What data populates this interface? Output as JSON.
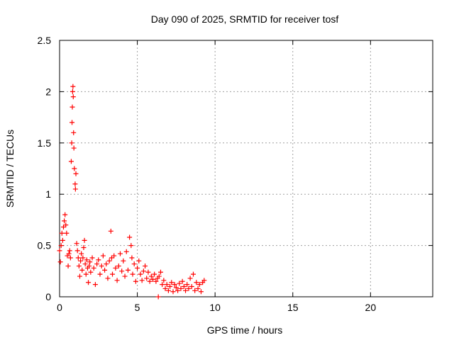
{
  "chart_data": {
    "type": "scatter",
    "title": "Day 090 of 2025, SRMTID for receiver tosf",
    "xlabel": "GPS time / hours",
    "ylabel": "SRMTID / TECUs",
    "xlim": [
      0,
      24
    ],
    "ylim": [
      0,
      2.5
    ],
    "xticks": [
      0,
      5,
      10,
      15,
      20
    ],
    "yticks": [
      0,
      0.5,
      1,
      1.5,
      2,
      2.5
    ],
    "xtick_labels": [
      "0",
      "5",
      "10",
      "15",
      "20"
    ],
    "ytick_labels": [
      "0",
      "0.5",
      "1",
      "1.5",
      "2",
      "2.5"
    ],
    "grid": true,
    "marker": "+",
    "marker_color": "#ff0000",
    "series": [
      {
        "name": "tosf",
        "points": [
          [
            0.0,
            0.45
          ],
          [
            0.05,
            0.34
          ],
          [
            0.1,
            0.5
          ],
          [
            0.15,
            0.62
          ],
          [
            0.2,
            0.55
          ],
          [
            0.25,
            0.68
          ],
          [
            0.3,
            0.74
          ],
          [
            0.35,
            0.8
          ],
          [
            0.4,
            0.7
          ],
          [
            0.45,
            0.62
          ],
          [
            0.5,
            0.4
          ],
          [
            0.55,
            0.3
          ],
          [
            0.6,
            0.42
          ],
          [
            0.65,
            0.45
          ],
          [
            0.7,
            0.38
          ],
          [
            0.75,
            1.32
          ],
          [
            0.78,
            1.5
          ],
          [
            0.8,
            1.7
          ],
          [
            0.82,
            1.85
          ],
          [
            0.84,
            2.0
          ],
          [
            0.86,
            2.05
          ],
          [
            0.88,
            1.95
          ],
          [
            0.9,
            1.6
          ],
          [
            0.92,
            1.45
          ],
          [
            0.95,
            1.25
          ],
          [
            1.0,
            1.1
          ],
          [
            1.02,
            1.05
          ],
          [
            1.05,
            1.2
          ],
          [
            1.1,
            0.52
          ],
          [
            1.15,
            0.45
          ],
          [
            1.2,
            0.38
          ],
          [
            1.25,
            0.3
          ],
          [
            1.3,
            0.2
          ],
          [
            1.35,
            0.35
          ],
          [
            1.4,
            0.42
          ],
          [
            1.45,
            0.26
          ],
          [
            1.5,
            0.38
          ],
          [
            1.55,
            0.48
          ],
          [
            1.6,
            0.55
          ],
          [
            1.65,
            0.32
          ],
          [
            1.7,
            0.22
          ],
          [
            1.75,
            0.36
          ],
          [
            1.8,
            0.28
          ],
          [
            1.85,
            0.14
          ],
          [
            1.9,
            0.3
          ],
          [
            1.95,
            0.34
          ],
          [
            2.0,
            0.24
          ],
          [
            2.1,
            0.38
          ],
          [
            2.2,
            0.28
          ],
          [
            2.3,
            0.12
          ],
          [
            2.4,
            0.32
          ],
          [
            2.5,
            0.36
          ],
          [
            2.6,
            0.22
          ],
          [
            2.7,
            0.3
          ],
          [
            2.8,
            0.4
          ],
          [
            2.9,
            0.26
          ],
          [
            3.0,
            0.32
          ],
          [
            3.1,
            0.18
          ],
          [
            3.2,
            0.35
          ],
          [
            3.3,
            0.64
          ],
          [
            3.35,
            0.38
          ],
          [
            3.4,
            0.22
          ],
          [
            3.5,
            0.4
          ],
          [
            3.6,
            0.28
          ],
          [
            3.7,
            0.16
          ],
          [
            3.8,
            0.3
          ],
          [
            3.9,
            0.42
          ],
          [
            4.0,
            0.25
          ],
          [
            4.1,
            0.35
          ],
          [
            4.2,
            0.2
          ],
          [
            4.3,
            0.44
          ],
          [
            4.4,
            0.26
          ],
          [
            4.5,
            0.58
          ],
          [
            4.6,
            0.5
          ],
          [
            4.65,
            0.38
          ],
          [
            4.7,
            0.22
          ],
          [
            4.8,
            0.32
          ],
          [
            4.9,
            0.15
          ],
          [
            5.0,
            0.28
          ],
          [
            5.1,
            0.35
          ],
          [
            5.2,
            0.22
          ],
          [
            5.3,
            0.16
          ],
          [
            5.4,
            0.25
          ],
          [
            5.5,
            0.3
          ],
          [
            5.6,
            0.18
          ],
          [
            5.7,
            0.24
          ],
          [
            5.8,
            0.15
          ],
          [
            5.9,
            0.2
          ],
          [
            6.0,
            0.17
          ],
          [
            6.1,
            0.22
          ],
          [
            6.2,
            0.15
          ],
          [
            6.3,
            0.18
          ],
          [
            6.35,
            0.0
          ],
          [
            6.4,
            0.2
          ],
          [
            6.5,
            0.24
          ],
          [
            6.6,
            0.12
          ],
          [
            6.7,
            0.16
          ],
          [
            6.8,
            0.08
          ],
          [
            6.9,
            0.12
          ],
          [
            7.0,
            0.06
          ],
          [
            7.1,
            0.1
          ],
          [
            7.2,
            0.14
          ],
          [
            7.3,
            0.05
          ],
          [
            7.4,
            0.12
          ],
          [
            7.5,
            0.09
          ],
          [
            7.6,
            0.06
          ],
          [
            7.7,
            0.13
          ],
          [
            7.8,
            0.08
          ],
          [
            7.9,
            0.15
          ],
          [
            8.0,
            0.1
          ],
          [
            8.1,
            0.06
          ],
          [
            8.2,
            0.12
          ],
          [
            8.3,
            0.08
          ],
          [
            8.4,
            0.18
          ],
          [
            8.5,
            0.1
          ],
          [
            8.6,
            0.22
          ],
          [
            8.7,
            0.06
          ],
          [
            8.8,
            0.14
          ],
          [
            8.9,
            0.08
          ],
          [
            9.0,
            0.12
          ],
          [
            9.1,
            0.05
          ],
          [
            9.2,
            0.14
          ],
          [
            9.3,
            0.16
          ]
        ]
      }
    ]
  }
}
